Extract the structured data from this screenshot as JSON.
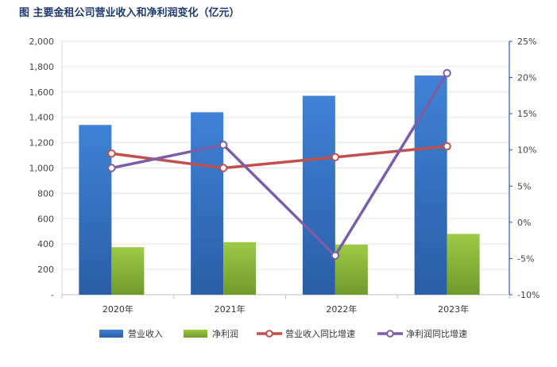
{
  "title": "图   主要金租公司营业收入和净利润变化（亿元）",
  "chart_data": {
    "type": "bar",
    "categories": [
      "2020年",
      "2021年",
      "2022年",
      "2023年"
    ],
    "series": [
      {
        "name": "营业收入",
        "type": "bar",
        "axis": "left",
        "color": "#3a78c9",
        "values": [
          1340,
          1440,
          1570,
          1730
        ]
      },
      {
        "name": "净利润",
        "type": "bar",
        "axis": "left",
        "color": "#8dbd3e",
        "values": [
          375,
          415,
          395,
          480
        ]
      },
      {
        "name": "营业收入同比增速",
        "type": "line",
        "axis": "right",
        "color": "#c0504d",
        "values": [
          9.5,
          7.5,
          9.0,
          10.5
        ]
      },
      {
        "name": "净利润同比增速",
        "type": "line",
        "axis": "right",
        "color": "#7b5ea7",
        "values": [
          7.5,
          10.7,
          -4.6,
          20.6
        ]
      }
    ],
    "y_left": {
      "range": [
        0,
        2000
      ],
      "ticks": [
        "-",
        "200",
        "400",
        "600",
        "800",
        "1,000",
        "1,200",
        "1,400",
        "1,600",
        "1,800",
        "2,000"
      ]
    },
    "y_right": {
      "range": [
        -10,
        25
      ],
      "ticks": [
        "-10%",
        "-5%",
        "0%",
        "5%",
        "10%",
        "15%",
        "20%",
        "25%"
      ]
    },
    "grid": true,
    "legend_position": "bottom"
  }
}
